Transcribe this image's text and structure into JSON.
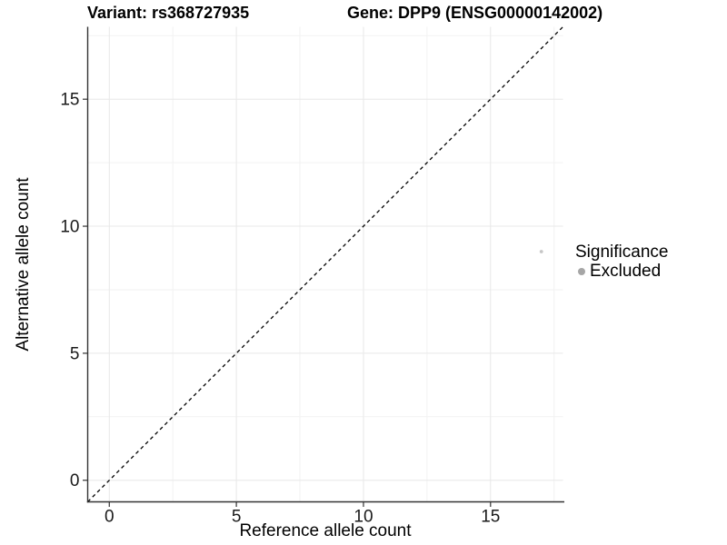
{
  "title": {
    "variant": "Variant: rs368727935",
    "gene": "Gene: DPP9 (ENSG00000142002)"
  },
  "axes": {
    "x": {
      "label": "Reference allele count"
    },
    "y": {
      "label": "Alternative allele count"
    }
  },
  "legend": {
    "title": "Significance",
    "items": [
      {
        "label": "Excluded",
        "color": "#a6a6a6"
      }
    ]
  },
  "colors": {
    "background": "#ffffff",
    "major_grid": "#e8e8e8",
    "minor_grid": "#f2f2f2",
    "axis_line": "#333333",
    "tick_label": "#1a1a1a",
    "dashed_line": "#000000",
    "point": "#c6c6c6"
  },
  "chart_data": {
    "type": "scatter",
    "title": "Variant: rs368727935   Gene: DPP9 (ENSG00000142002)",
    "xlabel": "Reference allele count",
    "ylabel": "Alternative allele count",
    "xlim": [
      -0.85,
      17.85
    ],
    "ylim": [
      -0.85,
      17.85
    ],
    "x_ticks": [
      0,
      5,
      10,
      15
    ],
    "y_ticks": [
      0,
      5,
      10,
      15
    ],
    "x_minor_ticks": [
      2.5,
      7.5,
      12.5,
      17.5
    ],
    "y_minor_ticks": [
      2.5,
      7.5,
      12.5,
      17.5
    ],
    "grid": true,
    "legend_position": "right",
    "legend_title": "Significance",
    "series": [
      {
        "name": "Excluded",
        "color": "#c6c6c6",
        "points": [
          {
            "x": 17,
            "y": 9
          }
        ]
      }
    ],
    "reference_line": {
      "kind": "identity",
      "equation": "y = x",
      "style": "dashed",
      "color": "#000000"
    }
  }
}
